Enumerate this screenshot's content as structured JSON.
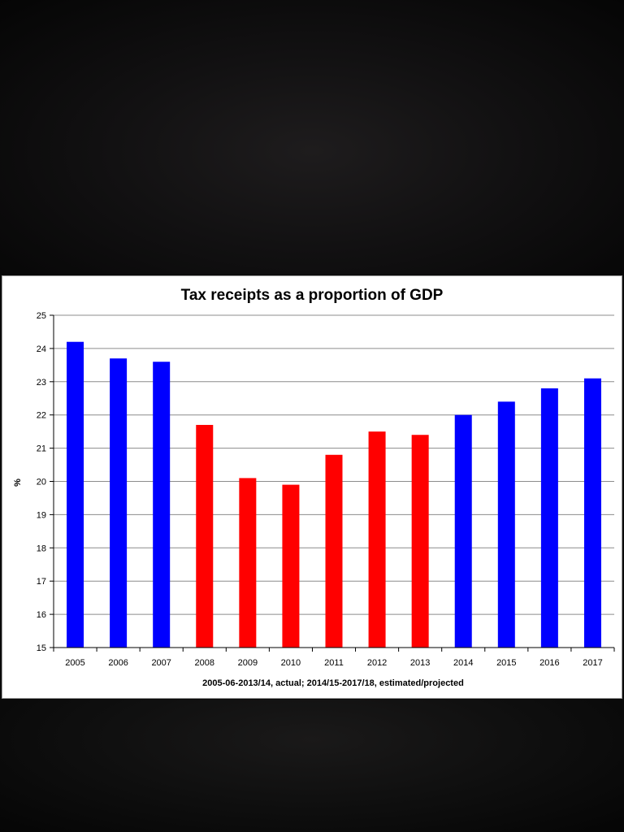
{
  "chart_data": {
    "type": "bar",
    "title": "Tax receipts as a proportion of GDP",
    "xlabel": "2005-06-2013/14, actual; 2014/15-2017/18, estimated/projected",
    "ylabel": "%",
    "ylim": [
      15,
      25
    ],
    "yticks": [
      "15",
      "16",
      "17",
      "18",
      "19",
      "20",
      "21",
      "22",
      "23",
      "24",
      "25"
    ],
    "grid": true,
    "categories": [
      "2005",
      "2006",
      "2007",
      "2008",
      "2009",
      "2010",
      "2011",
      "2012",
      "2013",
      "2014",
      "2015",
      "2016",
      "2017"
    ],
    "values": [
      24.2,
      23.7,
      23.6,
      21.7,
      20.1,
      19.9,
      20.8,
      21.5,
      21.4,
      22.0,
      22.4,
      22.8,
      23.1
    ],
    "bar_colors": [
      "#0000ff",
      "#0000ff",
      "#0000ff",
      "#ff0000",
      "#ff0000",
      "#ff0000",
      "#ff0000",
      "#ff0000",
      "#ff0000",
      "#0000ff",
      "#0000ff",
      "#0000ff",
      "#0000ff"
    ]
  }
}
